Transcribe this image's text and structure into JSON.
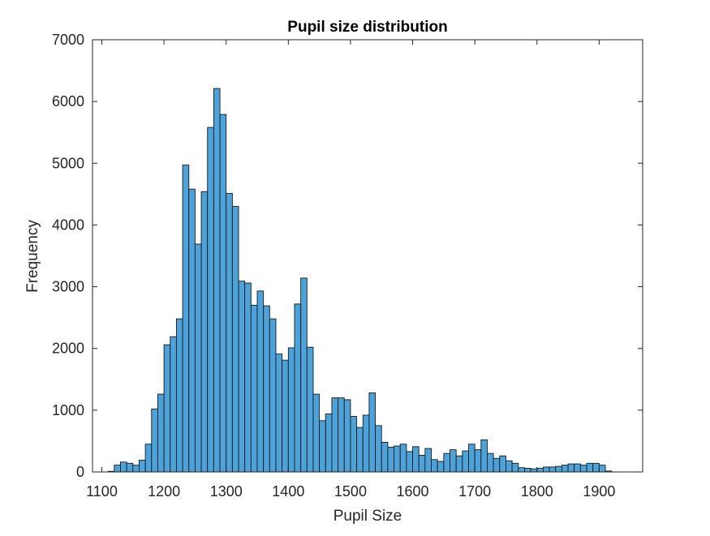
{
  "chart_data": {
    "type": "bar",
    "title": "Pupil size distribution",
    "xlabel": "Pupil Size",
    "ylabel": "Frequency",
    "xlim": [
      1085,
      1970
    ],
    "ylim": [
      0,
      7000
    ],
    "bin_width": 10,
    "bin_edges_start": 1110,
    "xticks": [
      1100,
      1200,
      1300,
      1400,
      1500,
      1600,
      1700,
      1800,
      1900
    ],
    "yticks": [
      0,
      1000,
      2000,
      3000,
      4000,
      5000,
      6000,
      7000
    ],
    "grid": false,
    "legend": "none",
    "bar_color": "#4DA2D9",
    "edge_color": "#1a1a1a",
    "values": [
      10,
      110,
      160,
      140,
      110,
      190,
      450,
      1020,
      1260,
      2060,
      2190,
      2480,
      4970,
      4580,
      3690,
      4540,
      5580,
      6210,
      5790,
      4510,
      4300,
      3090,
      3060,
      2700,
      2930,
      2690,
      2480,
      1910,
      1810,
      2010,
      2720,
      3140,
      2020,
      1260,
      830,
      940,
      1200,
      1200,
      1170,
      900,
      720,
      920,
      1280,
      750,
      480,
      400,
      420,
      450,
      330,
      410,
      270,
      380,
      200,
      170,
      300,
      360,
      260,
      340,
      450,
      360,
      520,
      300,
      220,
      260,
      180,
      140,
      70,
      60,
      50,
      60,
      80,
      80,
      90,
      110,
      130,
      130,
      110,
      140,
      140,
      110,
      15
    ]
  }
}
